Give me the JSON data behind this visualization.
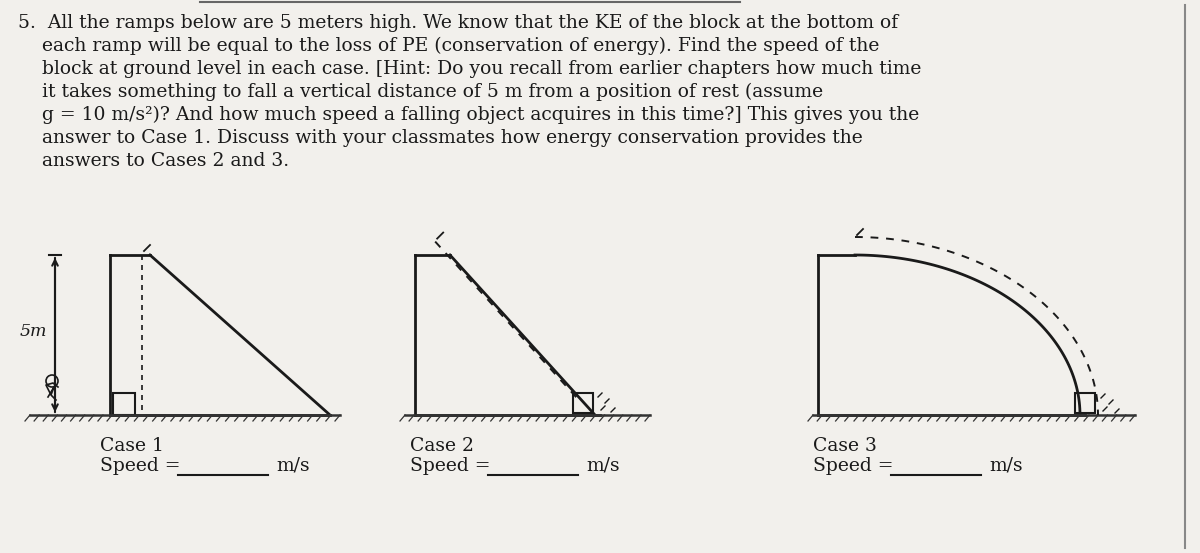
{
  "bg_color": "#f2f0ec",
  "text_color": "#1a1a1a",
  "fig_width": 12.0,
  "fig_height": 5.53,
  "line1": "5.  All the ramps below are 5 meters high. We know that the KE of the block at the bottom of",
  "line2": "    each ramp will be equal to the loss of PE (conservation of energy). Find the speed of the",
  "line3": "    block at ground level in each case. [Hint: Do you recall from earlier chapters how much time",
  "line4": "    it takes something to fall a vertical distance of 5 m from a position of rest (assume",
  "line5": "    g = 10 m/s²)? And how much speed a falling object acquires in this time?] This gives you the",
  "line6": "    answer to Case 1. Discuss with your classmates how energy conservation provides the",
  "line7": "    answers to Cases 2 and 3.",
  "ramp_color": "#1a1a1a",
  "ground_color": "#333333",
  "case_labels": [
    "Case 1",
    "Case 2",
    "Case 3"
  ],
  "speed_labels": [
    "Speed =",
    "Speed =",
    "Speed ="
  ],
  "ms_labels": [
    "m/s",
    "m/s",
    "m/s"
  ],
  "italic_line5": true
}
